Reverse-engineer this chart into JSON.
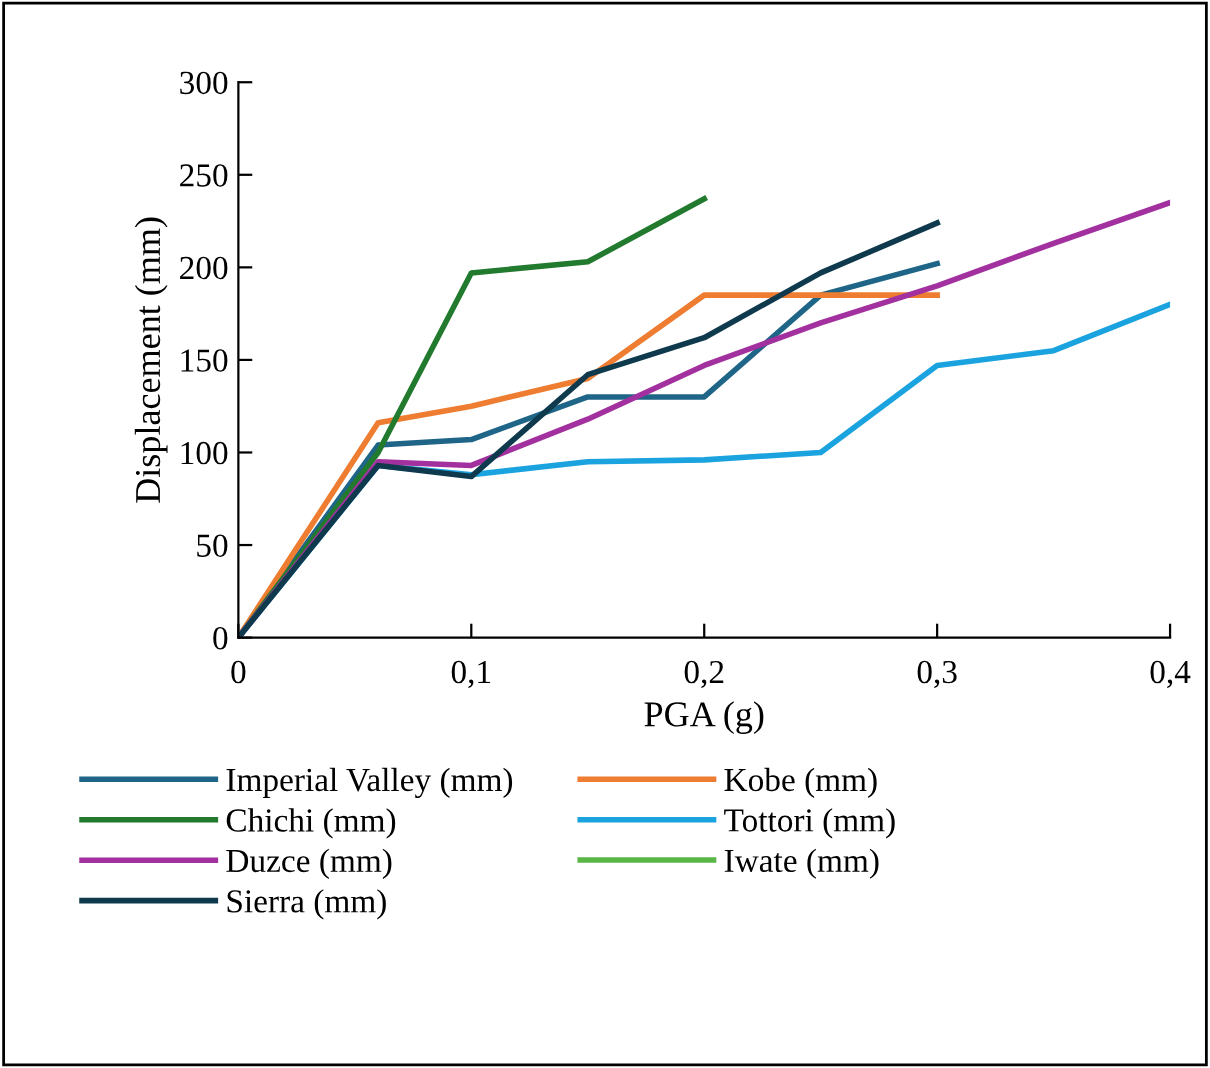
{
  "chart_data": {
    "type": "line",
    "xlabel": "PGA (g)",
    "ylabel": "Displacement (mm)",
    "xlim": [
      0,
      0.4
    ],
    "ylim": [
      0,
      300
    ],
    "xticks": [
      0,
      {
        "value": 0.1,
        "label": "0,1"
      },
      {
        "value": 0.2,
        "label": "0,2"
      },
      {
        "value": 0.3,
        "label": "0,3"
      },
      {
        "value": 0.4,
        "label": "0,4"
      }
    ],
    "yticks": [
      0,
      50,
      100,
      150,
      200,
      250,
      300
    ],
    "grid": false,
    "legend": "bottom",
    "marker": "none",
    "line_style": "solid",
    "series": [
      {
        "name": "Imperial Valley (mm)",
        "color": "#1f6587",
        "x": [
          0,
          0.06,
          0.1,
          0.15,
          0.2,
          0.25,
          0.3
        ],
        "values": [
          0,
          104,
          107,
          130,
          130,
          185,
          202
        ]
      },
      {
        "name": "Kobe (mm)",
        "color": "#ee7d31",
        "x": [
          0,
          0.06,
          0.1,
          0.15,
          0.2,
          0.25,
          0.3
        ],
        "values": [
          0,
          116,
          125,
          140,
          185,
          185,
          185
        ]
      },
      {
        "name": "Chichi (mm)",
        "color": "#217a2e",
        "x": [
          0,
          0.06,
          0.1,
          0.15,
          0.2
        ],
        "values": [
          0,
          100,
          197,
          203,
          237
        ]
      },
      {
        "name": "Tottori (mm)",
        "color": "#1aa3de",
        "x": [
          0,
          0.06,
          0.1,
          0.15,
          0.2,
          0.25,
          0.3,
          0.35,
          0.4
        ],
        "values": [
          0,
          93,
          88,
          95,
          96,
          100,
          147,
          155,
          180
        ]
      },
      {
        "name": "Duzce (mm)",
        "color": "#a2309e",
        "x": [
          0,
          0.06,
          0.1,
          0.15,
          0.2,
          0.25,
          0.3,
          0.35,
          0.4
        ],
        "values": [
          0,
          95,
          93,
          118,
          147,
          170,
          190,
          213,
          235
        ]
      },
      {
        "name": "Iwate (mm)",
        "color": "#5ab645"
      },
      {
        "name": "Sierra (mm)",
        "color": "#0f3a4e",
        "x": [
          0,
          0.06,
          0.1,
          0.15,
          0.2,
          0.25,
          0.3
        ],
        "values": [
          0,
          93,
          87,
          142,
          162,
          197,
          224
        ]
      }
    ]
  }
}
